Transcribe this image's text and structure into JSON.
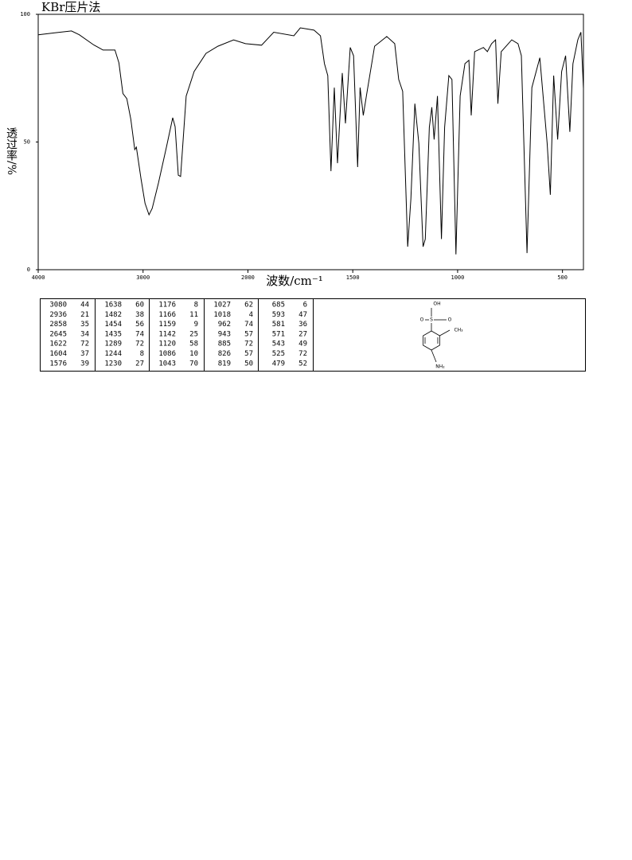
{
  "chart_data": {
    "type": "line",
    "title": "KBr压片法",
    "xlabel": "波数/cm⁻¹",
    "ylabel": "透过率/%",
    "xlim": [
      4000,
      400
    ],
    "x_scale_break": 2000,
    "xticks": [
      4000,
      3000,
      2000,
      1500,
      1000,
      500
    ],
    "ylim": [
      0,
      100
    ],
    "yticks": [
      0,
      50,
      100
    ],
    "color": "#000000",
    "x": [
      4000,
      3834,
      3683,
      3608,
      3470,
      3381,
      3268,
      3230,
      3192,
      3155,
      3117,
      3079,
      3064,
      3019,
      2981,
      2943,
      2913,
      2853,
      2777,
      2717,
      2694,
      2664,
      2642,
      2589,
      2513,
      2400,
      2287,
      2136,
      2023,
      1935,
      1877,
      1781,
      1750,
      1685,
      1654,
      1635,
      1619,
      1604,
      1588,
      1573,
      1550,
      1535,
      1512,
      1496,
      1477,
      1465,
      1450,
      1435,
      1396,
      1338,
      1300,
      1281,
      1262,
      1238,
      1223,
      1204,
      1185,
      1165,
      1154,
      1135,
      1123,
      1112,
      1096,
      1077,
      1062,
      1042,
      1027,
      1008,
      988,
      965,
      946,
      935,
      919,
      877,
      858,
      838,
      819,
      808,
      792,
      742,
      712,
      696,
      669,
      646,
      608,
      573,
      558,
      542,
      523,
      504,
      485,
      465,
      450,
      427,
      412,
      400
    ],
    "values": [
      92,
      92.8,
      93.5,
      92,
      88,
      86,
      86,
      81,
      69,
      67,
      59,
      47,
      48,
      35.5,
      26,
      21.5,
      24,
      34,
      48,
      59.5,
      56,
      37,
      36.5,
      68,
      77.6,
      84.7,
      87.5,
      90,
      88.5,
      87.9,
      93,
      91.6,
      94.7,
      93.8,
      91.6,
      80.7,
      76,
      38.6,
      71.3,
      41.7,
      77,
      57.3,
      87,
      83.8,
      40.2,
      71.3,
      60.4,
      68,
      87.5,
      91.3,
      88.5,
      74.5,
      69.8,
      9,
      27.7,
      65,
      49.5,
      9,
      12,
      55.8,
      63.6,
      51,
      68,
      12,
      55.8,
      76,
      74.5,
      6,
      68,
      80.7,
      82,
      60.4,
      85.4,
      87,
      85.4,
      88.5,
      90,
      65,
      85.4,
      90,
      88.5,
      83.8,
      6.5,
      71.3,
      83,
      49.5,
      29.3,
      76,
      51,
      77.6,
      83.8,
      54,
      80.7,
      90,
      93,
      71
    ]
  },
  "peak_table": [
    [
      [
        3080,
        44
      ],
      [
        1638,
        60
      ],
      [
        1176,
        8
      ],
      [
        1027,
        62
      ],
      [
        685,
        6
      ]
    ],
    [
      [
        2936,
        21
      ],
      [
        1482,
        38
      ],
      [
        1166,
        11
      ],
      [
        1018,
        4
      ],
      [
        593,
        47
      ]
    ],
    [
      [
        2858,
        35
      ],
      [
        1454,
        56
      ],
      [
        1159,
        9
      ],
      [
        962,
        74
      ],
      [
        581,
        36
      ]
    ],
    [
      [
        2645,
        34
      ],
      [
        1435,
        74
      ],
      [
        1142,
        25
      ],
      [
        943,
        57
      ],
      [
        571,
        27
      ]
    ],
    [
      [
        1622,
        72
      ],
      [
        1289,
        72
      ],
      [
        1120,
        58
      ],
      [
        885,
        72
      ],
      [
        543,
        49
      ]
    ],
    [
      [
        1604,
        37
      ],
      [
        1244,
        8
      ],
      [
        1086,
        10
      ],
      [
        826,
        57
      ],
      [
        525,
        72
      ]
    ],
    [
      [
        1576,
        39
      ],
      [
        1230,
        27
      ],
      [
        1043,
        70
      ],
      [
        819,
        50
      ],
      [
        479,
        52
      ]
    ]
  ],
  "structure": {
    "labels": [
      "OH",
      "S",
      "O",
      "O",
      "CH₃",
      "NH₂"
    ]
  }
}
